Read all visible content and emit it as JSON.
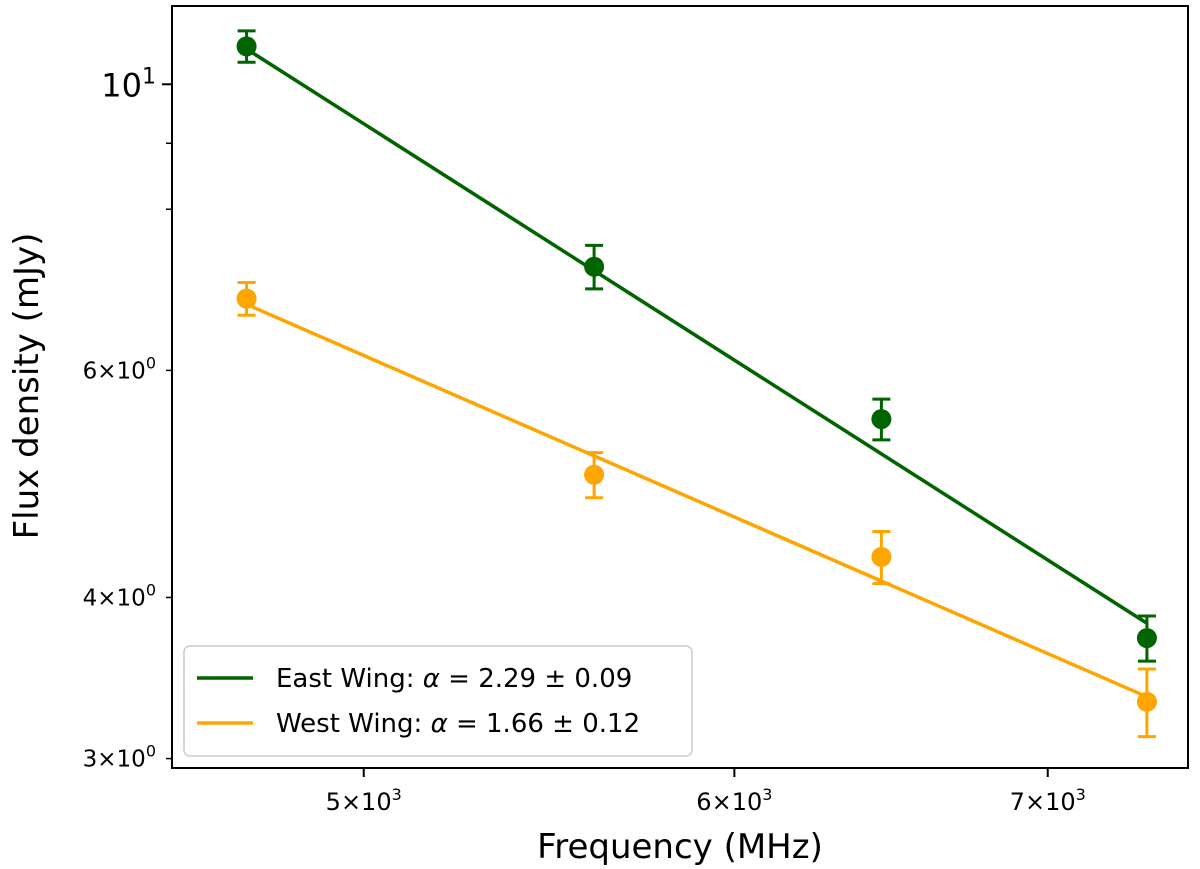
{
  "chart_data": {
    "type": "scatter",
    "scale": {
      "x": "log",
      "y": "log"
    },
    "xlabel": "Frequency (MHz)",
    "ylabel": "Flux density (mJy)",
    "xlim": [
      4550,
      7500
    ],
    "ylim": [
      2.95,
      11.5
    ],
    "grid": false,
    "legend_position": "lower-left",
    "x_ticks": [
      {
        "value": 5000,
        "mantissa": "5",
        "base": "10",
        "exp": "3"
      },
      {
        "value": 6000,
        "mantissa": "6",
        "base": "10",
        "exp": "3"
      },
      {
        "value": 7000,
        "mantissa": "7",
        "base": "10",
        "exp": "3"
      }
    ],
    "y_major_ticks": [
      {
        "value": 10,
        "mantissa": "",
        "base": "10",
        "exp": "1"
      }
    ],
    "y_minor_ticks": [
      {
        "value": 3,
        "mantissa": "3",
        "base": "10",
        "exp": "0"
      },
      {
        "value": 4,
        "mantissa": "4",
        "base": "10",
        "exp": "0"
      },
      {
        "value": 6,
        "mantissa": "6",
        "base": "10",
        "exp": "0"
      },
      {
        "value": 8,
        "mantissa": "",
        "base": "",
        "exp": ""
      },
      {
        "value": 9,
        "mantissa": "",
        "base": "",
        "exp": ""
      }
    ],
    "times_symbol": "×",
    "series": [
      {
        "name": "East Wing",
        "legend_prefix": "East Wing: ",
        "legend_symbol": "α",
        "legend_suffix": " = 2.29 ± 0.09",
        "color": "#006400",
        "x": [
          4720,
          5600,
          6450,
          7350
        ],
        "y": [
          10.7,
          7.22,
          5.5,
          3.72
        ],
        "yerr": [
          0.3,
          0.28,
          0.2,
          0.15
        ],
        "fit": {
          "x": [
            4720,
            7350
          ],
          "y": [
            10.65,
            3.82
          ]
        }
      },
      {
        "name": "West Wing",
        "legend_prefix": "West Wing: ",
        "legend_symbol": "α",
        "legend_suffix": " = 1.66 ± 0.12",
        "color": "#ffa500",
        "x": [
          4720,
          5600,
          6450,
          7350
        ],
        "y": [
          6.82,
          4.98,
          4.3,
          3.32
        ],
        "yerr": [
          0.2,
          0.2,
          0.2,
          0.2
        ],
        "fit": {
          "x": [
            4720,
            7350
          ],
          "y": [
            6.75,
            3.35
          ]
        }
      }
    ]
  }
}
